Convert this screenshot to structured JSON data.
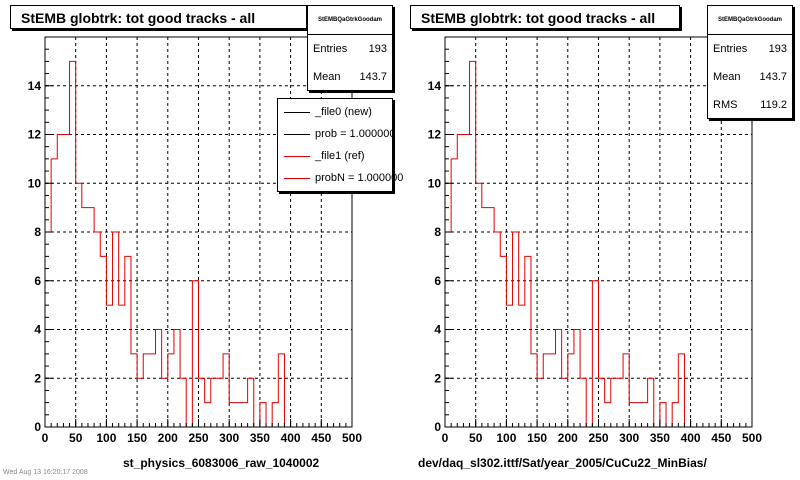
{
  "chart_data": [
    {
      "type": "histogram",
      "title": "StEMB globtrk: tot good tracks - all",
      "xlabel": "st_physics_6083006_raw_1040002",
      "ylabel": "",
      "xlim": [
        0,
        500
      ],
      "ylim": [
        0,
        16
      ],
      "x_ticks": [
        0,
        50,
        100,
        150,
        200,
        250,
        300,
        350,
        400,
        450,
        500
      ],
      "y_ticks": [
        0,
        2,
        4,
        6,
        8,
        10,
        12,
        14
      ],
      "grid": true,
      "bin_width": 10,
      "series": [
        {
          "name": "_file1 (ref)",
          "color": "#e00000",
          "values": [
            8,
            11,
            12,
            12,
            15,
            10,
            9,
            9,
            8,
            7,
            5,
            8,
            5,
            7,
            3,
            2,
            3,
            3,
            4,
            2,
            3,
            4,
            2,
            0,
            6,
            2,
            1,
            2,
            2,
            3,
            1,
            1,
            1,
            2,
            0,
            1,
            0,
            1,
            3,
            0
          ]
        }
      ],
      "stats": {
        "name": "StEMBQaGtrkGoodam",
        "rows": [
          {
            "label": "Entries",
            "value": "193"
          },
          {
            "label": "Mean",
            "value": "143.7"
          }
        ]
      },
      "legend": {
        "position": "top-right",
        "entries": [
          {
            "label": "_file0 (new)",
            "color": "#000000"
          },
          {
            "label": "prob = 1.000000",
            "color": "#000000"
          },
          {
            "label": "_file1 (ref)",
            "color": "#e00000"
          },
          {
            "label": "probN = 1.000000",
            "color": "#e00000"
          }
        ]
      }
    },
    {
      "type": "histogram",
      "title": "StEMB globtrk: tot good tracks - all",
      "xlabel": "dev/daq_sl302.ittf/Sat/year_2005/CuCu22_MinBias/",
      "ylabel": "",
      "xlim": [
        0,
        500
      ],
      "ylim": [
        0,
        16
      ],
      "x_ticks": [
        0,
        50,
        100,
        150,
        200,
        250,
        300,
        350,
        400,
        450,
        500
      ],
      "y_ticks": [
        0,
        2,
        4,
        6,
        8,
        10,
        12,
        14
      ],
      "grid": true,
      "bin_width": 10,
      "series": [
        {
          "name": "",
          "color": "#e00000",
          "values": [
            8,
            11,
            12,
            12,
            15,
            10,
            9,
            9,
            8,
            7,
            5,
            8,
            5,
            7,
            3,
            2,
            3,
            3,
            4,
            2,
            3,
            4,
            2,
            0,
            6,
            2,
            1,
            2,
            2,
            3,
            1,
            1,
            1,
            2,
            0,
            1,
            0,
            1,
            3,
            0
          ]
        }
      ],
      "stats": {
        "name": "StEMBQaGtrkGoodam",
        "rows": [
          {
            "label": "Entries",
            "value": "193"
          },
          {
            "label": "Mean",
            "value": "143.7"
          },
          {
            "label": "RMS",
            "value": "119.2"
          }
        ]
      }
    }
  ],
  "footnote": "Wed Aug 13 16:20:17 2008"
}
